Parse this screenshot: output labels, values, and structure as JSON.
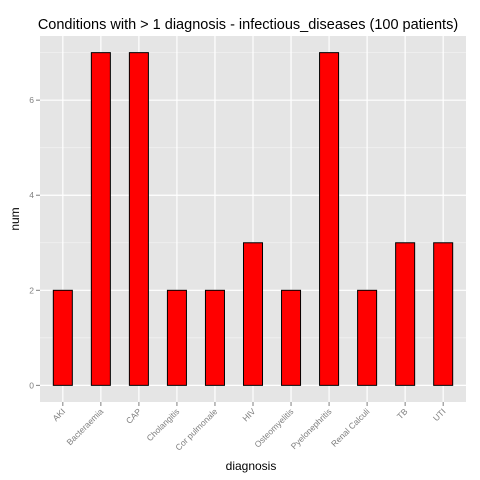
{
  "chart_data": {
    "type": "bar",
    "title": "Conditions with > 1 diagnosis - infectious_diseases (100 patients)",
    "xlabel": "diagnosis",
    "ylabel": "num",
    "categories": [
      "AKI",
      "Bacteraemia",
      "CAP",
      "Cholangitis",
      "Cor pulmonale",
      "HIV",
      "Osteomyelitis",
      "Pyelonephritis",
      "Renal Calculi",
      "TB",
      "UTI"
    ],
    "values": [
      2,
      7,
      7,
      2,
      2,
      3,
      2,
      7,
      2,
      3,
      3
    ],
    "ylim": [
      -0.35,
      7.35
    ],
    "yticks": [
      0,
      2,
      4,
      6
    ],
    "grid": true,
    "bar_color": "#ff0000",
    "bar_outline": "#000000",
    "panel_background": "#e5e5e5",
    "grid_color": "#ffffff"
  }
}
